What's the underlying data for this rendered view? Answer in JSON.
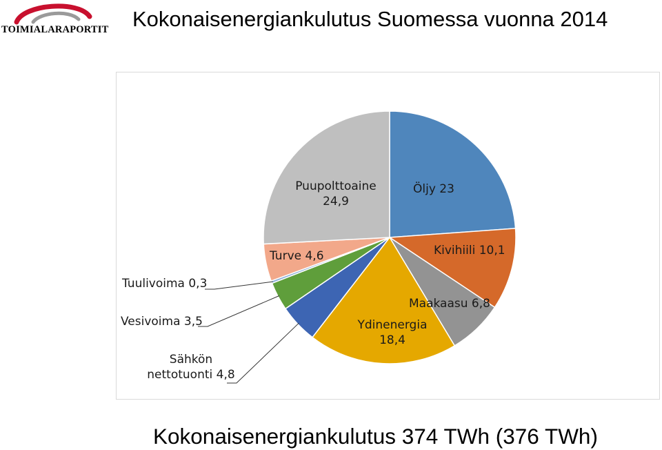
{
  "logo": {
    "text": "TOIMIALARAPORTIT"
  },
  "header": {
    "title": "Kokonaisenergiankulutus Suomessa vuonna 2014"
  },
  "footer": {
    "text": "Kokonaisenergiankulutus 374 TWh (376 TWh)"
  },
  "chart_data": {
    "type": "pie",
    "title": "",
    "slices": [
      {
        "name": "Öljy",
        "value": 23,
        "color": "#4f86bc",
        "label_line1": "Öljy 23",
        "label_line2": ""
      },
      {
        "name": "Kivihiili",
        "value": 10.1,
        "color": "#d5692a",
        "label_line1": "Kivihiili 10,1",
        "label_line2": ""
      },
      {
        "name": "Maakaasu",
        "value": 6.8,
        "color": "#939393",
        "label_line1": "Maakaasu 6,8",
        "label_line2": ""
      },
      {
        "name": "Ydinenergia",
        "value": 18.4,
        "color": "#e5a800",
        "label_line1": "Ydinenergia",
        "label_line2": "18,4"
      },
      {
        "name": "Sähkön nettotuonti",
        "value": 4.8,
        "color": "#3d65b3",
        "label_line1": "Sähkön",
        "label_line2": "nettotuonti 4,8"
      },
      {
        "name": "Vesivoima",
        "value": 3.5,
        "color": "#5f9e3b",
        "label_line1": "Vesivoima 3,5",
        "label_line2": ""
      },
      {
        "name": "Tuulivoima",
        "value": 0.3,
        "color": "#8db0d8",
        "label_line1": "Tuulivoima 0,3",
        "label_line2": ""
      },
      {
        "name": "Turve",
        "value": 4.6,
        "color": "#f2a88a",
        "label_line1": "Turve 4,6",
        "label_line2": ""
      },
      {
        "name": "Puupolttoaine",
        "value": 24.9,
        "color": "#bfbfbf",
        "label_line1": "Puupolttoaine",
        "label_line2": "24,9"
      }
    ],
    "legend": "none"
  }
}
